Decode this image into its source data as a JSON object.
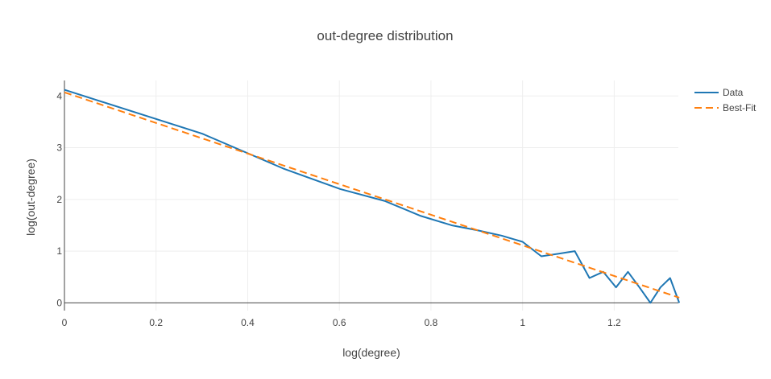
{
  "chart_data": {
    "type": "line",
    "title": "out-degree distribution",
    "xlabel": "log(degree)",
    "ylabel": "log(out-degree)",
    "xlim": [
      0,
      1.34
    ],
    "ylim": [
      -0.15,
      4.3
    ],
    "grid": true,
    "legend_position": "top-right",
    "x_ticks": [
      {
        "value": 0,
        "label": "0"
      },
      {
        "value": 0.2,
        "label": "0.2"
      },
      {
        "value": 0.4,
        "label": "0.4"
      },
      {
        "value": 0.6,
        "label": "0.6"
      },
      {
        "value": 0.8,
        "label": "0.8"
      },
      {
        "value": 1,
        "label": "1"
      },
      {
        "value": 1.2,
        "label": "1.2"
      }
    ],
    "y_ticks": [
      {
        "value": 0,
        "label": "0"
      },
      {
        "value": 1,
        "label": "1"
      },
      {
        "value": 2,
        "label": "2"
      },
      {
        "value": 3,
        "label": "3"
      },
      {
        "value": 4,
        "label": "4"
      }
    ],
    "series": [
      {
        "name": "Data",
        "style": "solid",
        "color": "#1f77b4",
        "x": [
          0,
          0.301,
          0.477,
          0.602,
          0.699,
          0.778,
          0.845,
          0.903,
          0.954,
          1.0,
          1.041,
          1.079,
          1.114,
          1.146,
          1.176,
          1.204,
          1.23,
          1.255,
          1.279,
          1.301,
          1.322,
          1.342
        ],
        "y": [
          4.12,
          3.27,
          2.6,
          2.2,
          1.97,
          1.68,
          1.5,
          1.4,
          1.3,
          1.18,
          0.9,
          0.95,
          1.0,
          0.48,
          0.6,
          0.3,
          0.6,
          0.3,
          0.0,
          0.3,
          0.48,
          0.0
        ]
      },
      {
        "name": "Best-Fit",
        "style": "dashed",
        "color": "#ff7f0e",
        "x": [
          0,
          1.342
        ],
        "y": [
          4.07,
          0.1
        ]
      }
    ]
  }
}
